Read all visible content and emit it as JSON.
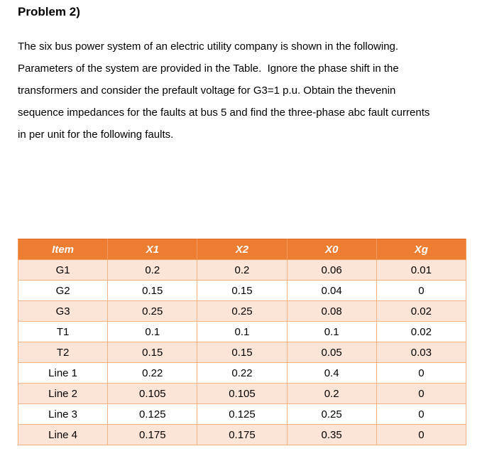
{
  "document": {
    "heading": "Problem 2)",
    "paragraph_lines": [
      "The six bus power system of an electric utility company is shown in the following.",
      "Parameters of the system are provided in the Table.  Ignore the phase shift in the",
      "transformers and consider the prefault voltage for G3=1 p.u. Obtain the thevenin",
      "sequence impedances for the faults at bus 5 and find the three-phase abc fault currents",
      "in per unit for the following faults."
    ]
  },
  "table": {
    "columns": [
      "Item",
      "X1",
      "X2",
      "X0",
      "Xg"
    ],
    "rows": [
      [
        "G1",
        "0.2",
        "0.2",
        "0.06",
        "0.01"
      ],
      [
        "G2",
        "0.15",
        "0.15",
        "0.04",
        "0"
      ],
      [
        "G3",
        "0.25",
        "0.25",
        "0.08",
        "0.02"
      ],
      [
        "T1",
        "0.1",
        "0.1",
        "0.1",
        "0.02"
      ],
      [
        "T2",
        "0.15",
        "0.15",
        "0.05",
        "0.03"
      ],
      [
        "Line 1",
        "0.22",
        "0.22",
        "0.4",
        "0"
      ],
      [
        "Line 2",
        "0.105",
        "0.105",
        "0.2",
        "0"
      ],
      [
        "Line 3",
        "0.125",
        "0.125",
        "0.25",
        "0"
      ],
      [
        "Line 4",
        "0.175",
        "0.175",
        "0.35",
        "0"
      ]
    ]
  },
  "colors": {
    "header_bg": "#ED7D31",
    "header_text": "#FFFFFF",
    "band_row_bg": "#FCE4D6",
    "border": "#F4B183",
    "text": "#000000"
  }
}
